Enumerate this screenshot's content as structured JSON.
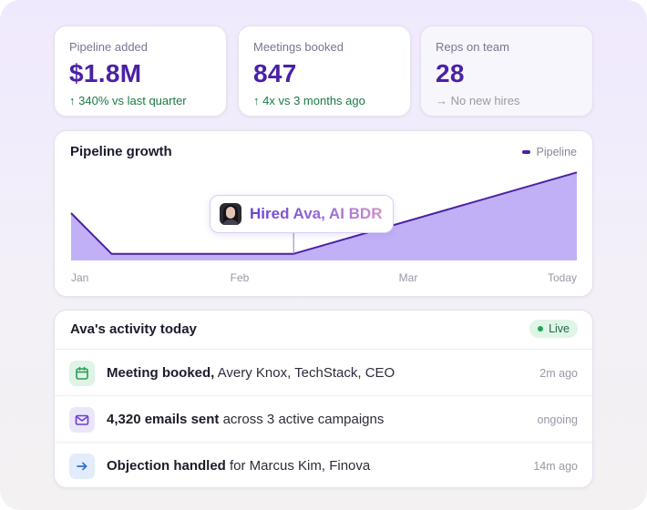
{
  "stats": [
    {
      "label": "Pipeline added",
      "value": "$1.8M",
      "delta_icon": "arrow-up-icon",
      "delta_symbol": "↑",
      "delta": "340% vs last quarter"
    },
    {
      "label": "Meetings booked",
      "value": "847",
      "delta_icon": "arrow-up-icon",
      "delta_symbol": "↑",
      "delta": "4x vs 3 months ago"
    },
    {
      "label": "Reps on team",
      "value": "28",
      "delta_icon": "arrow-right-icon",
      "delta_symbol": "→",
      "delta": "No new hires"
    }
  ],
  "chart": {
    "title": "Pipeline growth",
    "legend": "Pipeline",
    "annotation": "Hired Ava, AI BDR",
    "colors": {
      "line": "#4a21a6",
      "fill": "#c2b0f6"
    }
  },
  "chart_data": {
    "type": "area",
    "categories": [
      "Jan",
      "Feb",
      "Mar",
      "Today"
    ],
    "series": [
      {
        "name": "Pipeline",
        "points": [
          [
            0,
            0.5
          ],
          [
            0.08,
            0.07
          ],
          [
            0.44,
            0.07
          ],
          [
            1,
            0.93
          ]
        ]
      }
    ],
    "ylim": [
      0,
      1
    ],
    "grid": false,
    "legend_position": "top-right",
    "annotations": [
      {
        "label": "Hired Ava, AI BDR",
        "x": 0.44
      }
    ]
  },
  "activity": {
    "title": "Ava's activity today",
    "status": "Live",
    "items": [
      {
        "icon": "calendar-icon",
        "bold": "Meeting booked,",
        "rest": " Avery Knox, TechStack, CEO",
        "time": "2m ago",
        "color": "#2a9d58",
        "bg": "#def4e6"
      },
      {
        "icon": "mail-icon",
        "bold": "4,320 emails sent",
        "rest": " across 3 active campaigns",
        "time": "ongoing",
        "color": "#6a3fd8",
        "bg": "#ece6fb"
      },
      {
        "icon": "arrow-right-icon",
        "bold": "Objection handled",
        "rest": " for Marcus Kim, Finova",
        "time": "14m ago",
        "color": "#2f6fd6",
        "bg": "#e2ecfc"
      }
    ]
  }
}
